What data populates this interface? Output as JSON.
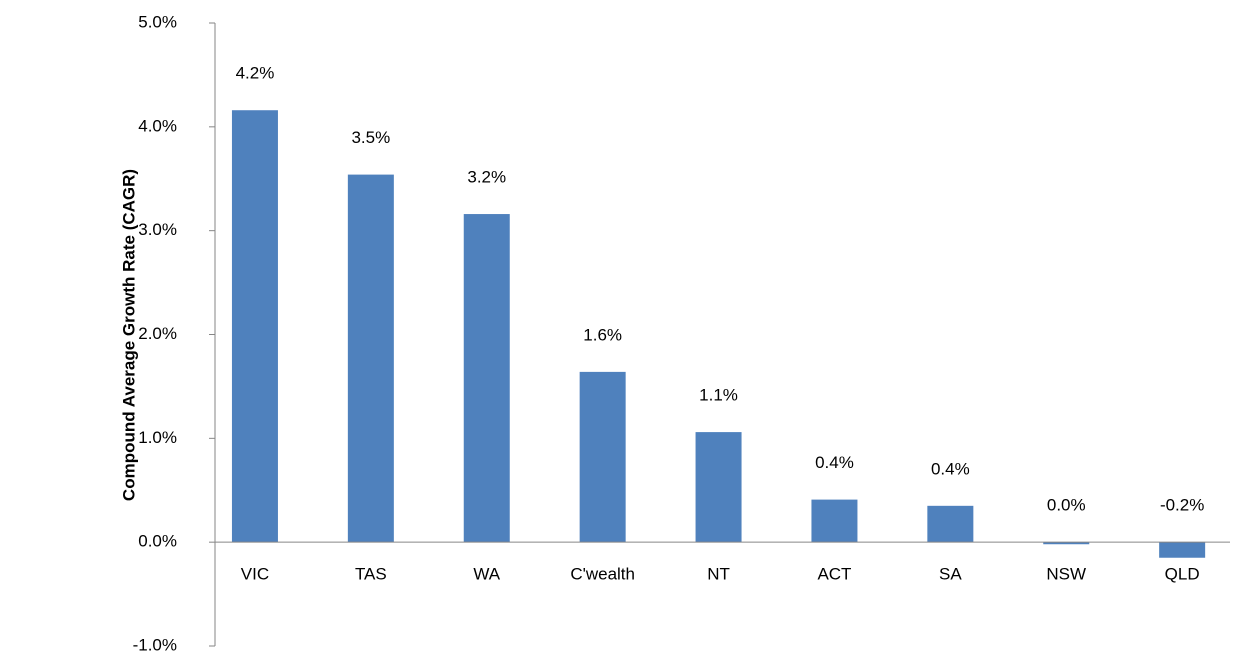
{
  "chart_data": {
    "type": "bar",
    "y_label": "Compound Average Growth Rate (CAGR)",
    "categories": [
      "VIC",
      "TAS",
      "WA",
      "C'wealth",
      "NT",
      "ACT",
      "SA",
      "NSW",
      "QLD"
    ],
    "values": [
      4.16,
      3.54,
      3.16,
      1.64,
      1.06,
      0.41,
      0.35,
      -0.02,
      -0.15
    ],
    "value_labels": [
      "4.2%",
      "3.5%",
      "3.2%",
      "1.6%",
      "1.1%",
      "0.4%",
      "0.4%",
      "0.0%",
      "-0.2%"
    ],
    "color": "#4f81bd",
    "ylim": [
      -1,
      5
    ],
    "yticks": [
      {
        "value": -1,
        "label": "-1.0%"
      },
      {
        "value": 0,
        "label": "0.0%"
      },
      {
        "value": 1,
        "label": "1.0%"
      },
      {
        "value": 2,
        "label": "2.0%"
      },
      {
        "value": 3,
        "label": "3.0%"
      },
      {
        "value": 4,
        "label": "4.0%"
      },
      {
        "value": 5,
        "label": "5.0%"
      }
    ],
    "grid": false
  }
}
